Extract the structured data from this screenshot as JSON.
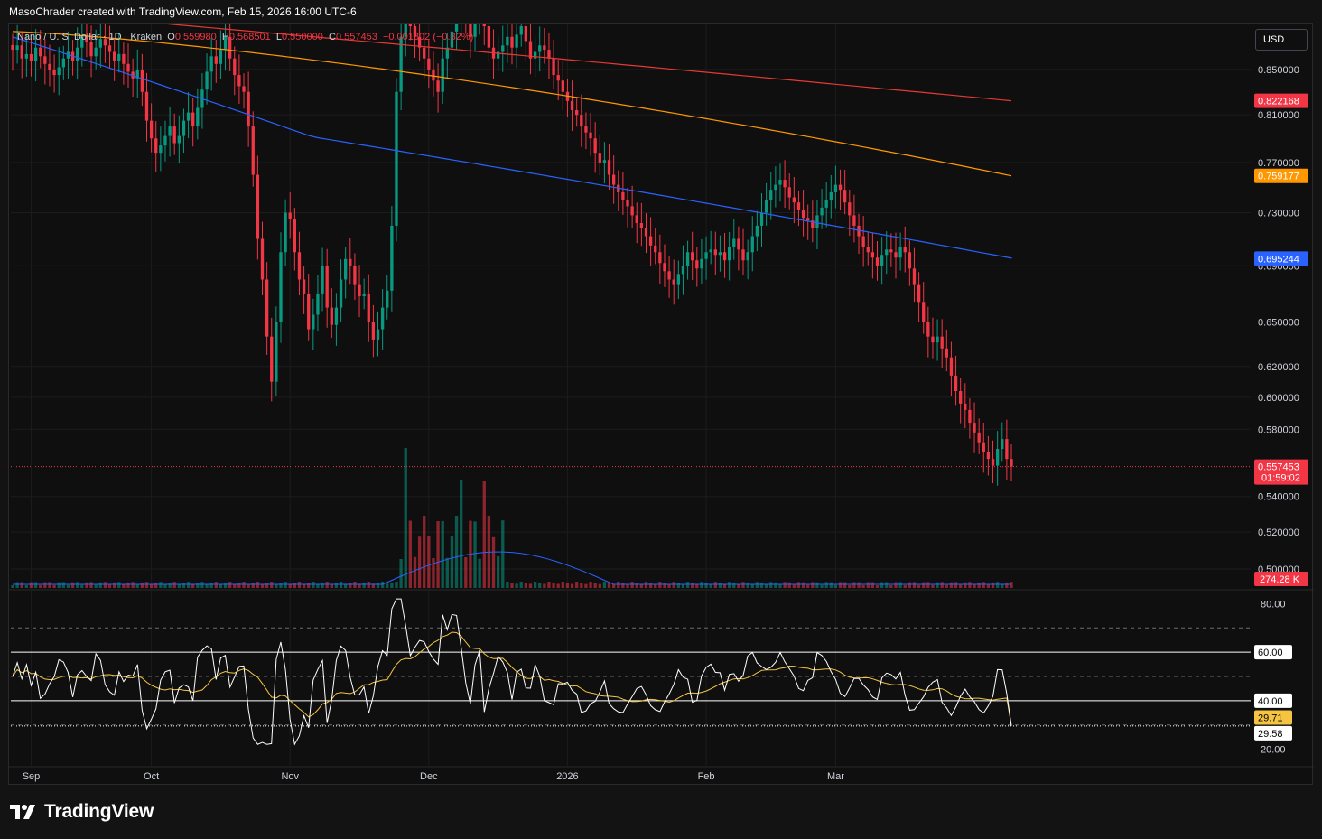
{
  "header": {
    "attribution": "MasoChrader created with TradingView.com, Feb 15, 2026 16:00 UTC-6"
  },
  "legend": {
    "symbol": "Nano / U. S. Dollar · 1D · Kraken",
    "open_label": "O",
    "open": "0.559980",
    "high_label": "H",
    "high": "0.568501",
    "low_label": "L",
    "low": "0.550000",
    "close_label": "C",
    "close": "0.557453",
    "change": "−0.001802 (−0.32%)"
  },
  "currency_button": "USD",
  "brand": "TradingView",
  "colors": {
    "up": "#089981",
    "down": "#f23645",
    "ma_red": "#e53935",
    "ma_orange": "#ff9800",
    "ma_blue": "#2962ff",
    "rsi_line": "#ffffff",
    "rsi_ma": "#f5c542",
    "volume_ma": "#2962ff"
  },
  "chart_data": {
    "type": "candlestick",
    "price_axis": {
      "ticks": [
        "0.850000",
        "0.810000",
        "0.770000",
        "0.730000",
        "0.690000",
        "0.650000",
        "0.620000",
        "0.600000",
        "0.580000",
        "0.540000",
        "0.520000",
        "0.500000"
      ],
      "ylim": [
        0.49,
        0.89
      ],
      "scale": "log"
    },
    "price_labels": [
      {
        "name": "ma_red",
        "value": "0.822168",
        "color": "#f23645"
      },
      {
        "name": "ma_orange",
        "value": "0.759177",
        "color": "#ff9800"
      },
      {
        "name": "ma_blue",
        "value": "0.695244",
        "color": "#2962ff"
      },
      {
        "name": "last_price",
        "value": "0.557453",
        "countdown": "01:59:02",
        "color": "#f23645"
      }
    ],
    "volume_label": "274.28 K",
    "time_axis": [
      "Sep",
      "Oct",
      "Nov",
      "Dec",
      "2026",
      "Feb",
      "Mar"
    ],
    "close_series": [
      0.868,
      0.872,
      0.86,
      0.864,
      0.858,
      0.87,
      0.862,
      0.855,
      0.85,
      0.845,
      0.852,
      0.86,
      0.866,
      0.858,
      0.87,
      0.88,
      0.875,
      0.862,
      0.87,
      0.878,
      0.872,
      0.866,
      0.858,
      0.864,
      0.855,
      0.848,
      0.842,
      0.85,
      0.83,
      0.805,
      0.79,
      0.778,
      0.784,
      0.792,
      0.8,
      0.786,
      0.792,
      0.805,
      0.812,
      0.8,
      0.816,
      0.832,
      0.848,
      0.862,
      0.855,
      0.868,
      0.88,
      0.86,
      0.845,
      0.835,
      0.83,
      0.8,
      0.76,
      0.71,
      0.68,
      0.64,
      0.61,
      0.65,
      0.7,
      0.73,
      0.725,
      0.7,
      0.68,
      0.67,
      0.645,
      0.655,
      0.67,
      0.69,
      0.66,
      0.648,
      0.66,
      0.68,
      0.695,
      0.69,
      0.676,
      0.668,
      0.67,
      0.65,
      0.638,
      0.645,
      0.66,
      0.672,
      0.72,
      0.83,
      0.88,
      0.9,
      0.89,
      0.88,
      0.87,
      0.86,
      0.85,
      0.84,
      0.83,
      0.86,
      0.87,
      0.885,
      0.9,
      0.905,
      0.895,
      0.88,
      0.9,
      0.925,
      0.89,
      0.87,
      0.86,
      0.866,
      0.872,
      0.88,
      0.87,
      0.882,
      0.89,
      0.876,
      0.86,
      0.866,
      0.872,
      0.868,
      0.86,
      0.845,
      0.84,
      0.83,
      0.822,
      0.814,
      0.81,
      0.8,
      0.795,
      0.79,
      0.778,
      0.77,
      0.772,
      0.76,
      0.752,
      0.746,
      0.74,
      0.735,
      0.728,
      0.722,
      0.718,
      0.712,
      0.705,
      0.7,
      0.692,
      0.686,
      0.68,
      0.676,
      0.684,
      0.69,
      0.7,
      0.694,
      0.688,
      0.695,
      0.7,
      0.702,
      0.698,
      0.7,
      0.694,
      0.704,
      0.71,
      0.702,
      0.694,
      0.7,
      0.712,
      0.72,
      0.73,
      0.74,
      0.748,
      0.752,
      0.756,
      0.75,
      0.742,
      0.738,
      0.732,
      0.726,
      0.724,
      0.718,
      0.728,
      0.734,
      0.74,
      0.746,
      0.752,
      0.748,
      0.738,
      0.728,
      0.72,
      0.712,
      0.704,
      0.7,
      0.696,
      0.69,
      0.698,
      0.702,
      0.7,
      0.696,
      0.704,
      0.7,
      0.688,
      0.676,
      0.664,
      0.65,
      0.64,
      0.636,
      0.64,
      0.632,
      0.626,
      0.614,
      0.604,
      0.596,
      0.592,
      0.584,
      0.578,
      0.572,
      0.566,
      0.562,
      0.558,
      0.568,
      0.574,
      0.562,
      0.557453
    ],
    "series": [
      {
        "name": "MA (red)",
        "last": 0.822168
      },
      {
        "name": "MA (orange)",
        "last": 0.759177
      },
      {
        "name": "MA (blue)",
        "last": 0.695244
      }
    ],
    "rsi_axis": {
      "ticks": [
        "80.00",
        "20.00"
      ],
      "bands": [
        "60.00",
        "40.00"
      ],
      "ylim": [
        15,
        85
      ]
    },
    "rsi_labels": [
      {
        "name": "rsi_ma",
        "value": "29.71",
        "color": "#f5c542"
      },
      {
        "name": "rsi",
        "value": "29.58",
        "color": "#ffffff"
      }
    ]
  }
}
